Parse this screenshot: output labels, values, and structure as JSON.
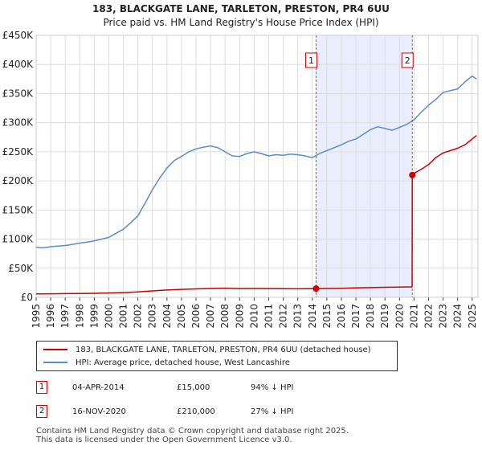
{
  "chart_data": {
    "type": "line",
    "title": "183, BLACKGATE LANE, TARLETON, PRESTON, PR4 6UU",
    "subtitle": "Price paid vs. HM Land Registry's House Price Index (HPI)",
    "xlabel": "",
    "ylabel": "",
    "xlim": [
      1995,
      2025.4
    ],
    "ylim": [
      0,
      450000
    ],
    "grid": true,
    "x_ticks": [
      "1995",
      "1996",
      "1997",
      "1998",
      "1999",
      "2000",
      "2001",
      "2002",
      "2003",
      "2004",
      "2005",
      "2006",
      "2007",
      "2008",
      "2009",
      "2010",
      "2011",
      "2012",
      "2013",
      "2014",
      "2015",
      "2016",
      "2017",
      "2018",
      "2019",
      "2020",
      "2021",
      "2022",
      "2023",
      "2024",
      "2025"
    ],
    "y_ticks": [
      "£0",
      "£50K",
      "£100K",
      "£150K",
      "£200K",
      "£250K",
      "£300K",
      "£350K",
      "£400K",
      "£450K"
    ],
    "shaded_period": {
      "from": 2014.26,
      "to": 2020.88
    },
    "series": [
      {
        "name": "183, BLACKGATE LANE, TARLETON, PRESTON, PR4 6UU (detached house)",
        "color": "#cc0000",
        "x": [
          1995.0,
          1996.0,
          1997.0,
          1998.0,
          1999.0,
          2000.0,
          2001.0,
          2002.0,
          2003.0,
          2004.0,
          2005.0,
          2006.0,
          2007.0,
          2008.0,
          2009.0,
          2010.0,
          2011.0,
          2012.0,
          2013.0,
          2014.26,
          2015.0,
          2016.0,
          2017.0,
          2018.0,
          2019.0,
          2020.0,
          2020.87,
          2020.88,
          2021.0,
          2021.5,
          2022.0,
          2022.5,
          2023.0,
          2023.5,
          2024.0,
          2024.5,
          2025.0,
          2025.3
        ],
        "values": [
          6000,
          6100,
          6300,
          6600,
          6900,
          7500,
          8200,
          9300,
          11000,
          12500,
          13700,
          14500,
          15200,
          15700,
          15100,
          15200,
          15000,
          14800,
          14700,
          15000,
          15200,
          15600,
          16200,
          16700,
          17300,
          17600,
          18000,
          210000,
          213000,
          220000,
          228000,
          240000,
          248000,
          252000,
          256000,
          262000,
          272000,
          278000
        ]
      },
      {
        "name": "HPI: Average price, detached house, West Lancashire",
        "color": "#5b8cc8",
        "x": [
          1995.0,
          1995.5,
          1996.0,
          1996.5,
          1997.0,
          1997.5,
          1998.0,
          1998.5,
          1999.0,
          1999.5,
          2000.0,
          2000.5,
          2001.0,
          2001.5,
          2002.0,
          2002.5,
          2003.0,
          2003.5,
          2004.0,
          2004.5,
          2005.0,
          2005.5,
          2006.0,
          2006.5,
          2007.0,
          2007.5,
          2008.0,
          2008.5,
          2009.0,
          2009.5,
          2010.0,
          2010.5,
          2011.0,
          2011.5,
          2012.0,
          2012.5,
          2013.0,
          2013.5,
          2014.0,
          2014.5,
          2015.0,
          2015.5,
          2016.0,
          2016.5,
          2017.0,
          2017.5,
          2018.0,
          2018.5,
          2019.0,
          2019.5,
          2020.0,
          2020.5,
          2021.0,
          2021.5,
          2022.0,
          2022.5,
          2023.0,
          2023.5,
          2024.0,
          2024.5,
          2025.0,
          2025.3
        ],
        "values": [
          86000,
          85000,
          87000,
          88000,
          89000,
          91000,
          93000,
          95000,
          97000,
          100000,
          103000,
          110000,
          117000,
          128000,
          140000,
          162000,
          185000,
          205000,
          222000,
          235000,
          242000,
          250000,
          255000,
          258000,
          260000,
          257000,
          250000,
          243000,
          242000,
          247000,
          250000,
          247000,
          243000,
          245000,
          244000,
          246000,
          245000,
          243000,
          240000,
          247000,
          252000,
          257000,
          262000,
          268000,
          272000,
          280000,
          288000,
          293000,
          290000,
          287000,
          292000,
          297000,
          305000,
          318000,
          330000,
          340000,
          352000,
          355000,
          358000,
          370000,
          380000,
          375000
        ]
      }
    ],
    "transactions": [
      {
        "id": "1",
        "date": "04-APR-2014",
        "price": "£15,000",
        "hpi": "94% ↓ HPI",
        "x": 2014.26,
        "y": 15000
      },
      {
        "id": "2",
        "date": "16-NOV-2020",
        "price": "£210,000",
        "hpi": "27% ↓ HPI",
        "x": 2020.88,
        "y": 210000
      }
    ],
    "legend_position": "below"
  },
  "footer": {
    "line1": "Contains HM Land Registry data © Crown copyright and database right 2025.",
    "line2": "This data is licensed under the Open Government Licence v3.0."
  }
}
